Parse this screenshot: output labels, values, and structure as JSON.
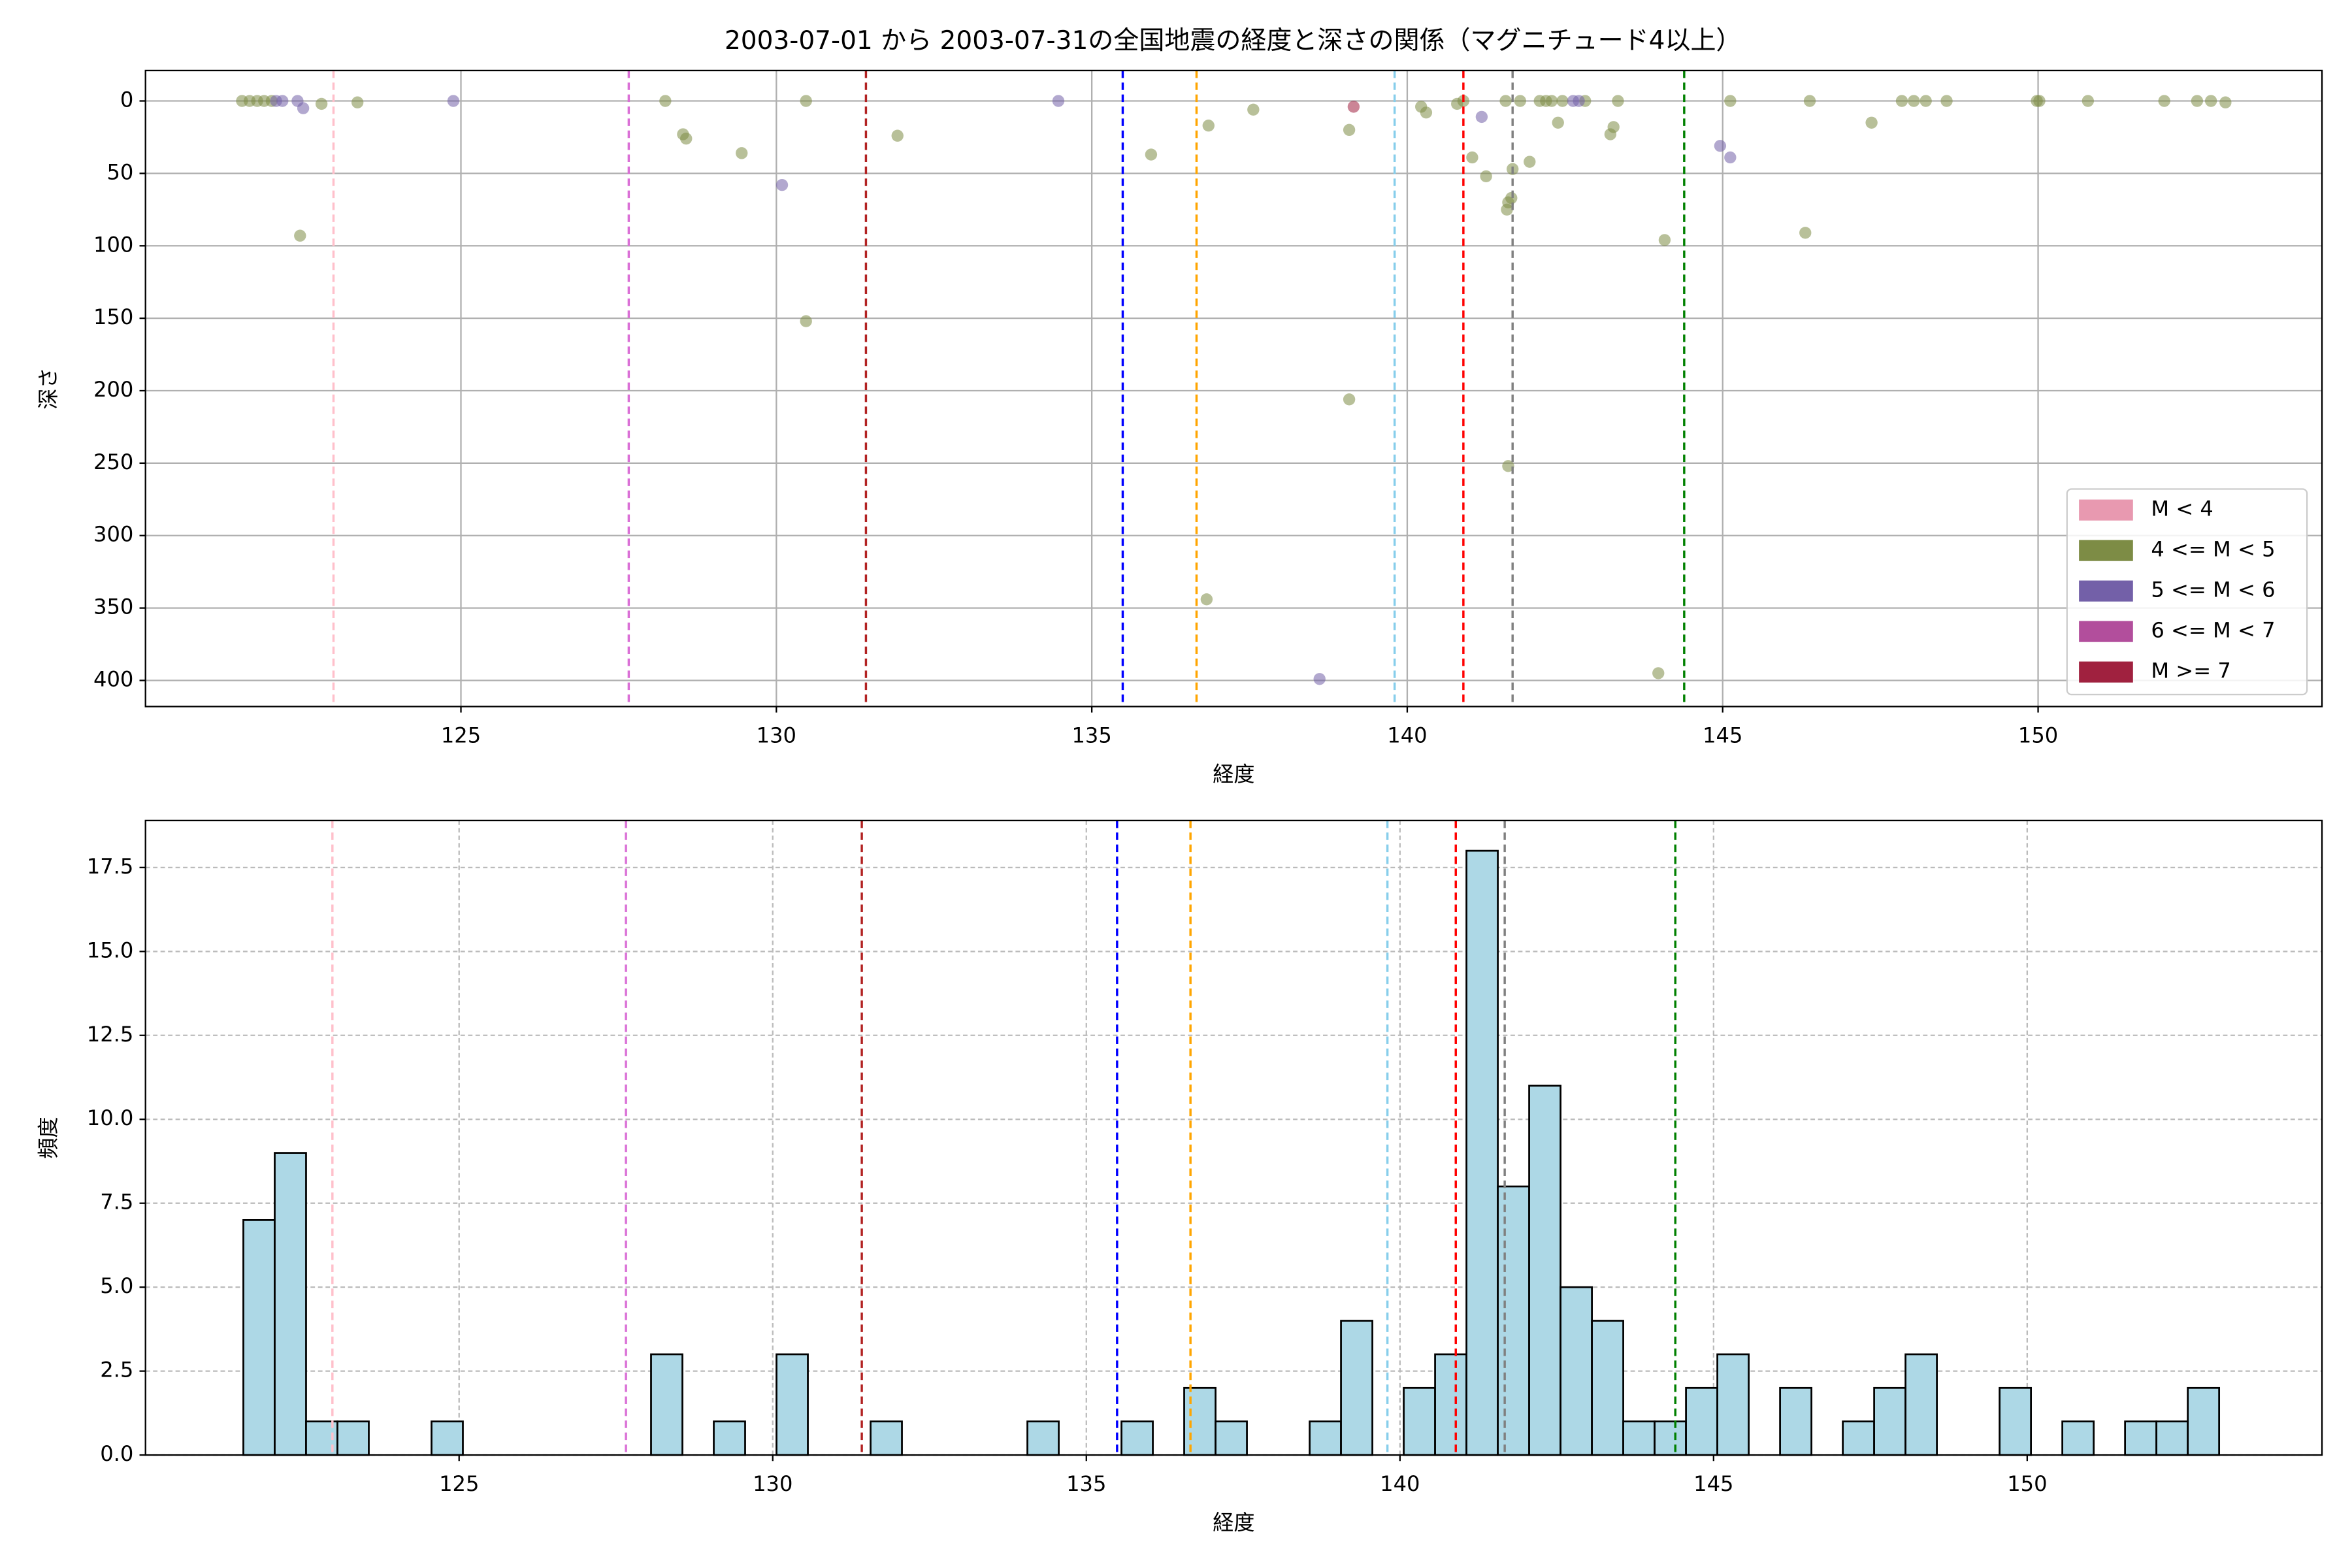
{
  "chart_data": [
    {
      "type": "scatter",
      "title": "2003-07-01 から 2003-07-31の全国地震の経度と深さの関係（マグニチュード4以上）",
      "xlabel": "経度",
      "ylabel": "深さ",
      "xlim": [
        120.0,
        154.5
      ],
      "ylim": [
        418,
        -21
      ],
      "xticks": [
        125,
        130,
        135,
        140,
        145,
        150
      ],
      "yticks": [
        0,
        50,
        100,
        150,
        200,
        250,
        300,
        350,
        400
      ],
      "grid": "solid",
      "legend": "lower right",
      "series": [
        {
          "name": "M < 4",
          "color": "#e899b0",
          "x": [],
          "values": []
        },
        {
          "name": "4 <= M < 5",
          "color": "#7d8c45",
          "x": [
            121.53,
            121.65,
            121.77,
            121.88,
            122.0,
            122.79,
            123.36,
            122.45,
            128.24,
            128.52,
            128.57,
            129.45,
            130.47,
            130.47,
            131.92,
            135.94,
            136.85,
            137.56,
            136.82,
            139.08,
            139.08,
            140.22,
            140.3,
            140.79,
            140.89,
            141.03,
            141.25,
            141.56,
            141.67,
            141.94,
            141.6,
            141.65,
            141.58,
            141.6,
            141.79,
            142.1,
            142.2,
            142.29,
            142.39,
            142.46,
            142.82,
            143.22,
            143.27,
            143.34,
            143.98,
            144.08,
            145.12,
            146.31,
            146.38,
            147.36,
            147.84,
            148.03,
            148.22,
            148.55,
            149.98,
            150.02,
            150.79,
            152.0,
            152.52,
            152.74,
            152.97
          ],
          "values": [
            0,
            0,
            0,
            0,
            0,
            2,
            1,
            93,
            0,
            23,
            26,
            36,
            0,
            152,
            24,
            37,
            17,
            6,
            344,
            20,
            206,
            4,
            8,
            2,
            0,
            39,
            52,
            0,
            47,
            42,
            70,
            67,
            75,
            252,
            0,
            0,
            0,
            0,
            15,
            0,
            0,
            23,
            18,
            0,
            395,
            96,
            0,
            91,
            0,
            15,
            0,
            0,
            0,
            0,
            0,
            0,
            0,
            0,
            0,
            0,
            1
          ]
        },
        {
          "name": "5 <= M < 6",
          "color": "#7360a8",
          "x": [
            122.07,
            122.17,
            122.41,
            122.5,
            124.88,
            130.09,
            134.47,
            138.61,
            141.18,
            142.63,
            142.72,
            144.96,
            145.12
          ],
          "values": [
            0,
            0,
            0,
            5,
            0,
            58,
            0,
            399,
            11,
            0,
            0,
            31,
            39
          ]
        },
        {
          "name": "6 <= M < 7",
          "color": "#b24e9c",
          "x": [],
          "values": []
        },
        {
          "name": "M >= 7",
          "color": "#a0213f",
          "x": [
            139.15
          ],
          "values": [
            4
          ]
        }
      ],
      "reference_lines": [
        {
          "x": 122.98,
          "color": "pink"
        },
        {
          "x": 127.66,
          "color": "orchid"
        },
        {
          "x": 131.42,
          "color": "firebrick"
        },
        {
          "x": 135.49,
          "color": "blue"
        },
        {
          "x": 136.66,
          "color": "orange"
        },
        {
          "x": 139.8,
          "color": "skyblue"
        },
        {
          "x": 140.89,
          "color": "red"
        },
        {
          "x": 141.67,
          "color": "gray"
        },
        {
          "x": 144.39,
          "color": "green"
        }
      ]
    },
    {
      "type": "histogram",
      "xlabel": "経度",
      "ylabel": "頻度",
      "xlim": [
        120.0,
        154.7
      ],
      "ylim": [
        0,
        18.9
      ],
      "xticks": [
        125,
        130,
        135,
        140,
        145,
        150
      ],
      "yticks": [
        {
          "value": 0,
          "label": "0.0"
        },
        {
          "value": 2.5,
          "label": "2.5"
        },
        {
          "value": 5,
          "label": "5.0"
        },
        {
          "value": 7.5,
          "label": "7.5"
        },
        {
          "value": 10,
          "label": "10.0"
        },
        {
          "value": 12.5,
          "label": "12.5"
        },
        {
          "value": 15,
          "label": "15.0"
        },
        {
          "value": 17.5,
          "label": "17.5"
        }
      ],
      "grid": "dashed",
      "color": "#add8e6",
      "bins": [
        121.56,
        122.06,
        122.56,
        123.06,
        123.56,
        124.06,
        124.56,
        125.06,
        125.56,
        126.06,
        126.56,
        127.06,
        127.56,
        128.06,
        128.56,
        129.06,
        129.56,
        130.06,
        130.56,
        131.06,
        131.56,
        132.06,
        132.56,
        133.06,
        133.56,
        134.06,
        134.56,
        135.06,
        135.56,
        136.06,
        136.56,
        137.06,
        137.56,
        138.06,
        138.56,
        139.06,
        139.56,
        140.06,
        140.56,
        141.06,
        141.56,
        142.06,
        142.56,
        143.06,
        143.56,
        144.06,
        144.56,
        145.06,
        145.56,
        146.06,
        146.56,
        147.06,
        147.56,
        148.06,
        148.56,
        149.06,
        149.56,
        150.06,
        150.56,
        151.06,
        151.56,
        152.06,
        152.56,
        153.06
      ],
      "values": [
        7,
        9,
        1,
        1,
        0,
        0,
        1,
        0,
        0,
        0,
        0,
        0,
        0,
        3,
        0,
        1,
        0,
        3,
        0,
        0,
        1,
        0,
        0,
        0,
        0,
        1,
        0,
        0,
        1,
        0,
        2,
        1,
        0,
        0,
        1,
        4,
        0,
        2,
        3,
        18,
        8,
        11,
        5,
        4,
        1,
        1,
        2,
        3,
        0,
        2,
        0,
        1,
        2,
        3,
        0,
        0,
        2,
        0,
        1,
        0,
        1,
        1,
        2
      ],
      "reference_lines": [
        {
          "x": 122.98,
          "color": "pink"
        },
        {
          "x": 127.66,
          "color": "orchid"
        },
        {
          "x": 131.42,
          "color": "firebrick"
        },
        {
          "x": 135.49,
          "color": "blue"
        },
        {
          "x": 136.66,
          "color": "orange"
        },
        {
          "x": 139.8,
          "color": "skyblue"
        },
        {
          "x": 140.89,
          "color": "red"
        },
        {
          "x": 141.67,
          "color": "gray"
        },
        {
          "x": 144.39,
          "color": "green"
        }
      ]
    }
  ]
}
